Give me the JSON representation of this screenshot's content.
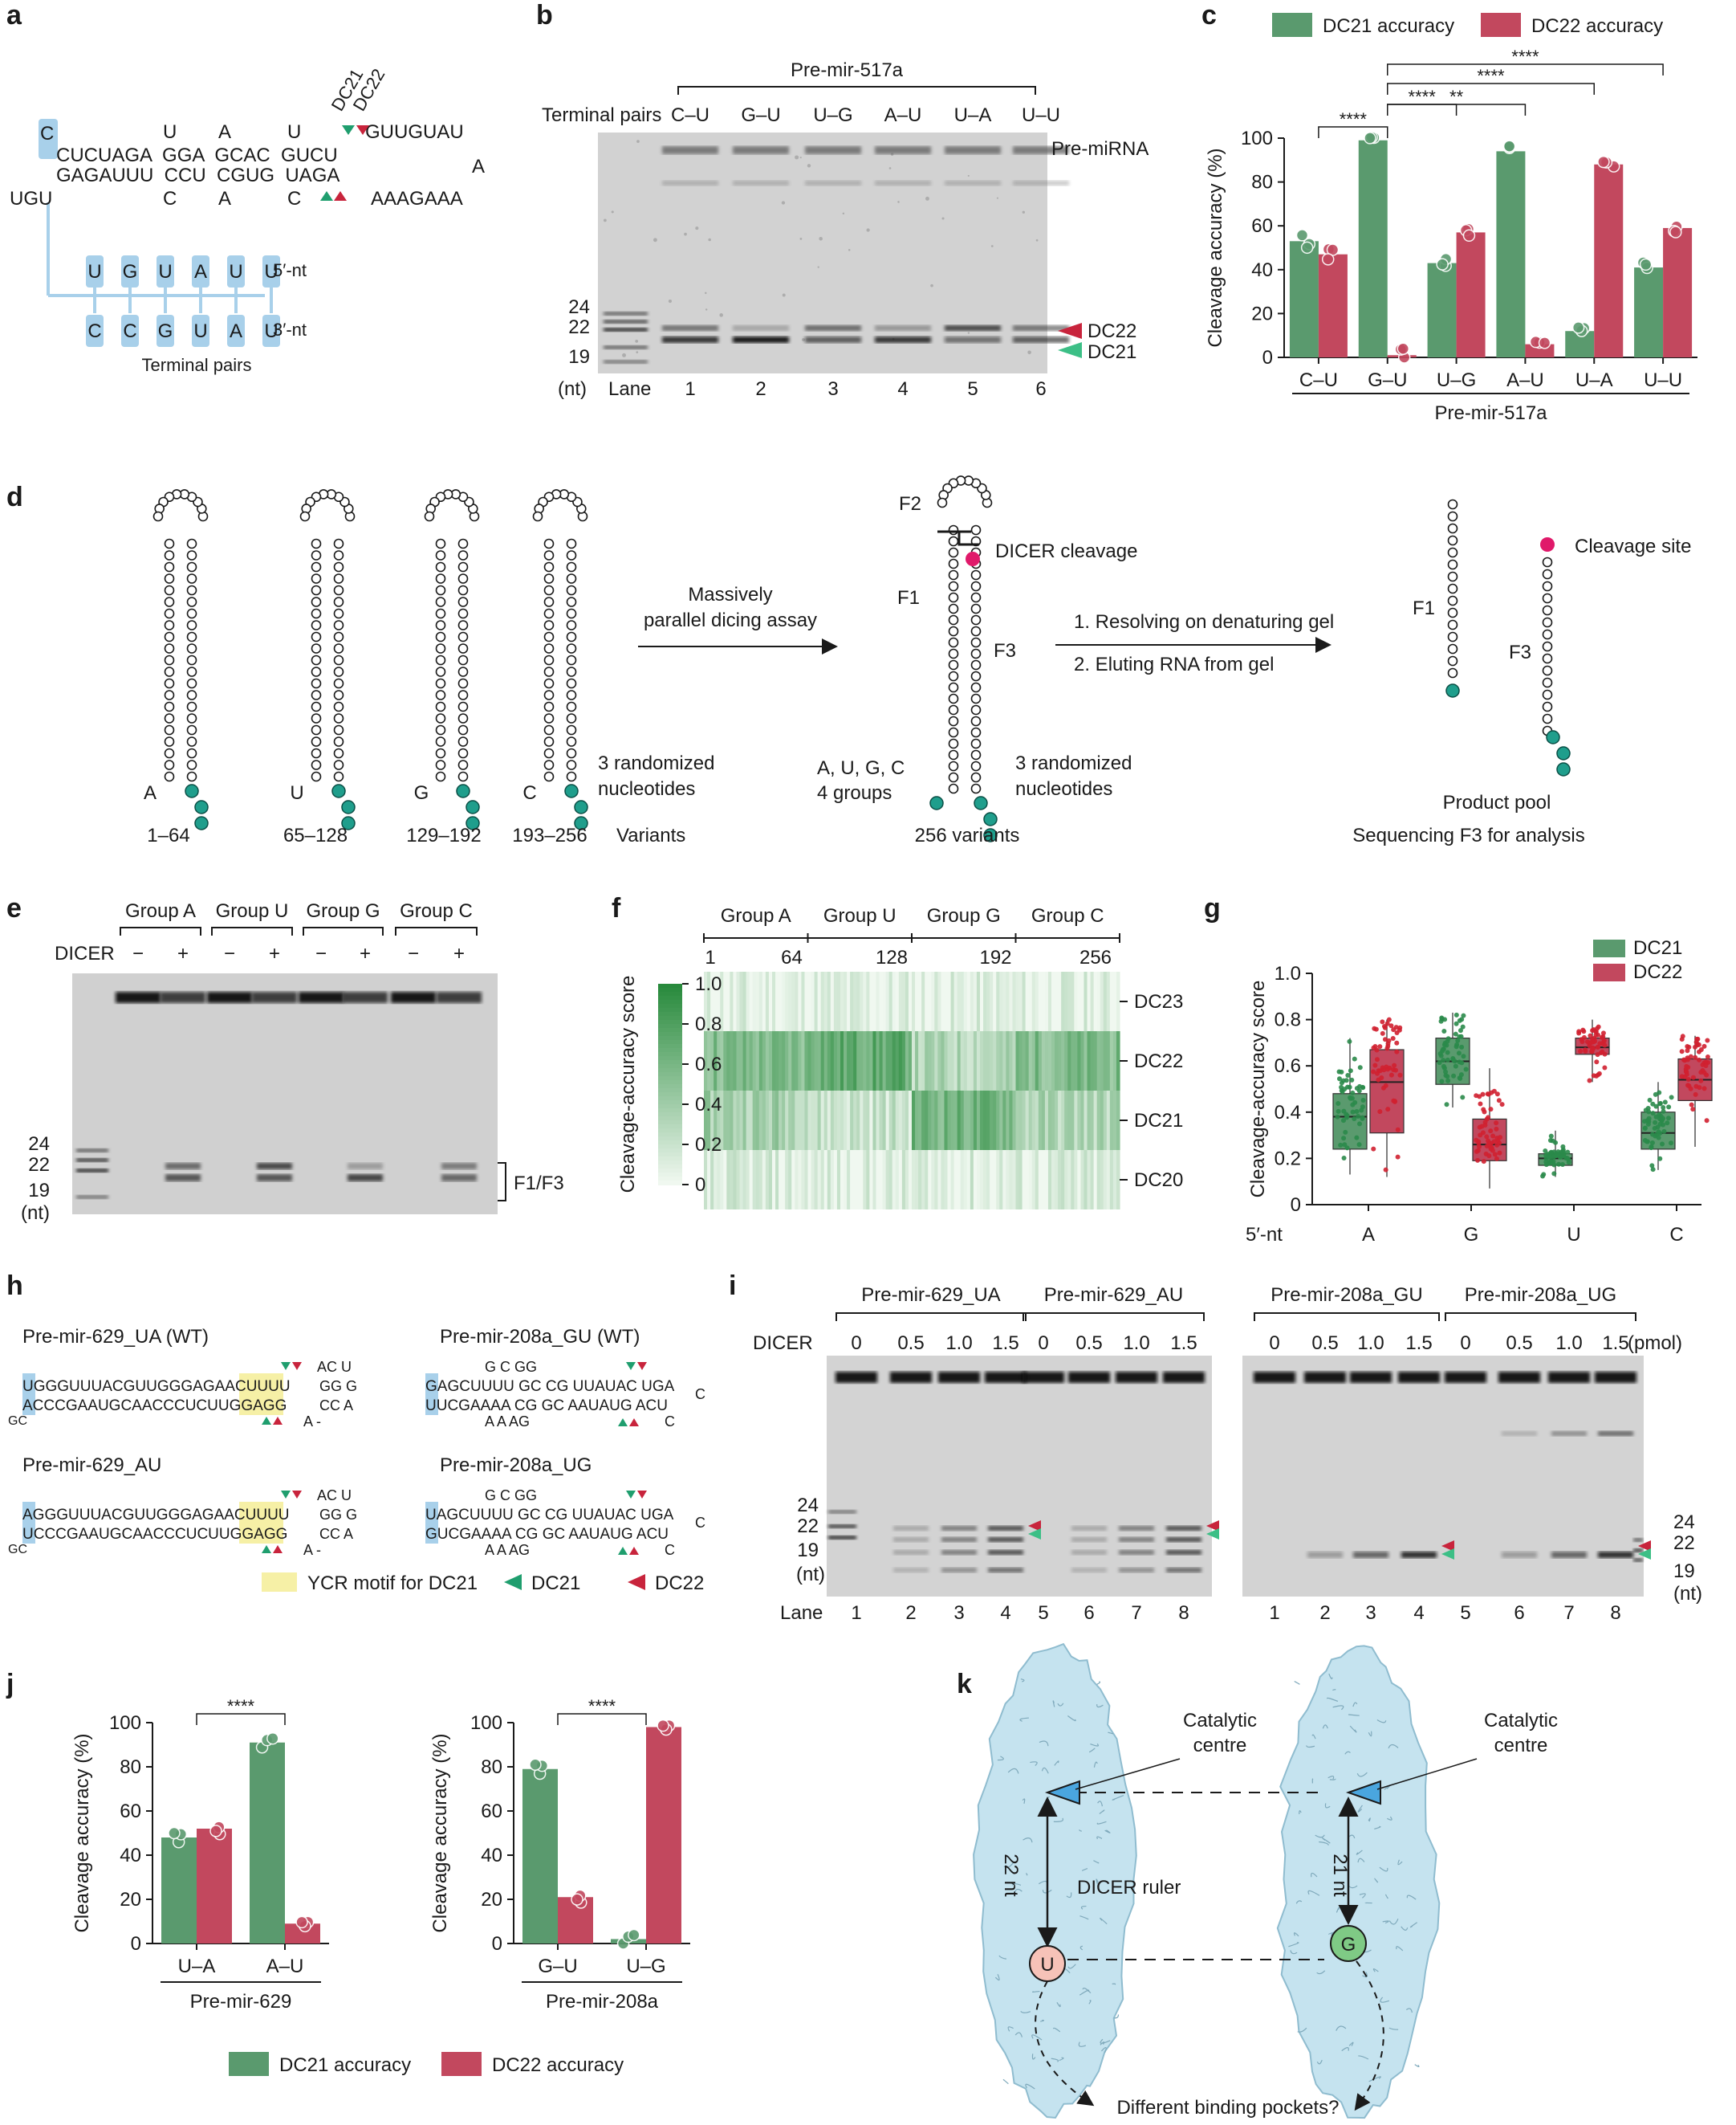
{
  "colors": {
    "dc21": "#5a9a6e",
    "dc22": "#c2485e",
    "hl_blue": "#a8d0ea",
    "hl_yellow": "#f6f0a6",
    "dicer_fill": "#c5e3ef",
    "dicer_stroke": "#8fbccf",
    "nt_teal": "#1f9e8c",
    "cleave_pink": "#e0196a",
    "gel_bg": "#d4d4d4",
    "heat": "#2e8b47"
  },
  "panels": {
    "a": {
      "label": "a",
      "rows": [
        "CUCUAGA  GGA  GCAC  GUCU",
        "GAGAUUU  CCU  CGUG  UAGA"
      ],
      "loops_top": [
        "U",
        "A",
        "U"
      ],
      "loops_bot": [
        "C",
        "A",
        "C"
      ],
      "left_top": "C",
      "left_bot": "UGU",
      "tail_top": "GUUGUAU",
      "apex": "A",
      "tail_bot": "AAAGAAA",
      "top_nt": [
        "U",
        "G",
        "U",
        "A",
        "U",
        "U"
      ],
      "bot_nt": [
        "C",
        "C",
        "G",
        "U",
        "A",
        "U"
      ],
      "five_nt": "5′-nt",
      "three_nt": "3′-nt",
      "caption": "Terminal pairs",
      "dc21": "DC21",
      "dc22": "DC22"
    },
    "b": {
      "label": "b",
      "title": "Pre-mir-517a",
      "row_label": "Terminal pairs",
      "pairs": [
        "C–U",
        "G–U",
        "U–G",
        "A–U",
        "U–A",
        "U–U"
      ],
      "markers": [
        "24",
        "22",
        "19"
      ],
      "nt": "(nt)",
      "lane": "Lane",
      "lanes": [
        "1",
        "2",
        "3",
        "4",
        "5",
        "6"
      ],
      "pre": "Pre-miRNA",
      "dc22": "DC22",
      "dc21": "DC21"
    },
    "c": {
      "label": "c"
    },
    "d": {
      "label": "d",
      "letters": [
        "A",
        "U",
        "G",
        "C"
      ],
      "ranges": [
        "1–64",
        "65–128",
        "129–192",
        "193–256"
      ],
      "variants": "Variants",
      "rand": [
        "3 randomized",
        "nucleotides"
      ],
      "arrow1": [
        "Massively",
        "parallel dicing assay"
      ],
      "f1": "F1",
      "f2": "F2",
      "f3": "F3",
      "cleavage": "DICER cleavage",
      "groups": [
        "A, U, G, C",
        "4 groups"
      ],
      "v256": "256 variants",
      "steps": [
        "1. Resolving on denaturing  gel",
        "2. Eluting RNA from gel"
      ],
      "site": "Cleavage site",
      "pool": "Product pool",
      "seq": "Sequencing F3 for analysis"
    },
    "e": {
      "label": "e",
      "groups": [
        "Group A",
        "Group U",
        "Group G",
        "Group C"
      ],
      "dicer": "DICER",
      "signs": [
        "−",
        "+",
        "−",
        "+",
        "−",
        "+",
        "−",
        "+"
      ],
      "markers": [
        "24",
        "22",
        "19"
      ],
      "nt": "(nt)",
      "product": "F1/F3"
    },
    "f": {
      "label": "f"
    },
    "g": {
      "label": "g"
    },
    "h": {
      "label": "h",
      "c1": "Pre-mir-629_UA (WT)",
      "c2": "Pre-mir-208a_GU (WT)",
      "c3": "Pre-mir-629_AU",
      "c4": "Pre-mir-208a_UG",
      "s629wt": [
        "UGGGUUUACGUUGGGAGAACUUUU",
        "ACCCGAAUGCAACCCUCUUGGAGG"
      ],
      "s629au": [
        "AGGGUUUACGUUGGGAGAACUUUU",
        "UCCCGAAUGCAACCCUCUUGGAGG"
      ],
      "s629loop": [
        "AC U",
        "GG G",
        "CC A",
        "A -"
      ],
      "s208gu": [
        "GAGCUUUU GC CG UUAUAC UGA",
        "UUCGAAAA CG GC AAUAUG ACU"
      ],
      "s208ug": [
        "UAGCUUUU GC CG UUAUAC UGA",
        "GUCGAAAA CG GC AAUAUG ACU"
      ],
      "s208top": "G C GG",
      "s208bot": "A A AG",
      "s208tail": [
        "C",
        "G",
        "A",
        "C",
        "U",
        "C"
      ],
      "gc": "GC",
      "legend_ycr": "YCR motif for DC21",
      "legend_dc21": "DC21",
      "legend_dc22": "DC22"
    },
    "i": {
      "label": "i",
      "dicer": "DICER",
      "pmol": "(pmol)",
      "g1": "Pre-mir-629_UA",
      "g2": "Pre-mir-629_AU",
      "g3": "Pre-mir-208a_GU",
      "g4": "Pre-mir-208a_UG",
      "conc": [
        "0",
        "0.5",
        "1.0",
        "1.5"
      ],
      "lanes": [
        "1",
        "2",
        "3",
        "4",
        "5",
        "6",
        "7",
        "8"
      ],
      "markers": [
        "24",
        "22",
        "19"
      ],
      "nt": "(nt)",
      "lane": "Lane"
    },
    "j": {
      "label": "j",
      "legend": [
        "DC21 accuracy",
        "DC22 accuracy"
      ]
    },
    "k": {
      "label": "k",
      "catalytic": [
        "Catalytic",
        "centre"
      ],
      "ruler": "DICER ruler",
      "l22": "22 nt",
      "l21": "21 nt",
      "u": "U",
      "g": "G",
      "pockets": "Different binding pockets?"
    }
  },
  "chart_data": [
    {
      "panel": "c",
      "type": "bar",
      "categories": [
        "C–U",
        "G–U",
        "U–G",
        "A–U",
        "U–A",
        "U–U"
      ],
      "group_label": "Pre-mir-517a",
      "ylabel": "Cleavage accuracy (%)",
      "ylim": [
        0,
        100
      ],
      "yticks": [
        "0",
        "20",
        "40",
        "60",
        "80",
        "100"
      ],
      "legend": [
        "DC21 accuracy",
        "DC22 accuracy"
      ],
      "series": [
        {
          "name": "DC21 accuracy",
          "values": [
            53,
            99,
            43,
            94,
            12,
            41
          ]
        },
        {
          "name": "DC22 accuracy",
          "values": [
            47,
            1,
            57,
            6,
            88,
            59
          ]
        }
      ],
      "significance": [
        {
          "from": 0,
          "to": 1,
          "text": "****"
        },
        {
          "from": 1,
          "to": 2,
          "text": "****"
        },
        {
          "from": 1,
          "to": 3,
          "text": "**"
        },
        {
          "from": 1,
          "to": 4,
          "text": "****"
        },
        {
          "from": 1,
          "to": 5,
          "text": "****"
        }
      ]
    },
    {
      "panel": "f",
      "type": "heatmap",
      "groups": [
        "Group A",
        "Group U",
        "Group G",
        "Group C"
      ],
      "xticks": [
        "1",
        "64",
        "128",
        "192",
        "256"
      ],
      "rows": [
        "DC23",
        "DC22",
        "DC21",
        "DC20"
      ],
      "colorbar_label": "Cleavage-accuracy score",
      "colorbar_ticks": [
        "0",
        "0.2",
        "0.4",
        "0.6",
        "0.8",
        "1.0"
      ],
      "row_means_by_group": [
        [
          0.05,
          0.05,
          0.05,
          0.05
        ],
        [
          0.55,
          0.7,
          0.3,
          0.55
        ],
        [
          0.38,
          0.2,
          0.62,
          0.32
        ],
        [
          0.08,
          0.06,
          0.08,
          0.08
        ]
      ]
    },
    {
      "panel": "g",
      "type": "box",
      "categories": [
        "A",
        "G",
        "U",
        "C"
      ],
      "xlabel": "5′-nt",
      "ylabel": "Cleavage-accuracy score",
      "ylim": [
        0,
        1.0
      ],
      "yticks": [
        "0",
        "0.2",
        "0.4",
        "0.6",
        "0.8",
        "1.0"
      ],
      "series": [
        {
          "name": "DC21",
          "boxes": [
            [
              0.13,
              0.24,
              0.38,
              0.48,
              0.72
            ],
            [
              0.42,
              0.52,
              0.62,
              0.72,
              0.83
            ],
            [
              0.12,
              0.17,
              0.2,
              0.22,
              0.32
            ],
            [
              0.15,
              0.24,
              0.31,
              0.4,
              0.53
            ]
          ]
        },
        {
          "name": "DC22",
          "boxes": [
            [
              0.12,
              0.31,
              0.53,
              0.67,
              0.8
            ],
            [
              0.07,
              0.19,
              0.26,
              0.37,
              0.59
            ],
            [
              0.53,
              0.65,
              0.68,
              0.72,
              0.8
            ],
            [
              0.25,
              0.45,
              0.54,
              0.63,
              0.73
            ]
          ]
        }
      ]
    },
    {
      "panel": "j1",
      "type": "bar",
      "group_label": "Pre-mir-629",
      "categories": [
        "U–A",
        "A–U"
      ],
      "ylabel": "Cleavage accuracy (%)",
      "ylim": [
        0,
        100
      ],
      "yticks": [
        "0",
        "20",
        "40",
        "60",
        "80",
        "100"
      ],
      "series": [
        {
          "name": "DC21 accuracy",
          "values": [
            48,
            91
          ]
        },
        {
          "name": "DC22 accuracy",
          "values": [
            52,
            9
          ]
        }
      ],
      "significance": [
        {
          "from": 0,
          "to": 1,
          "text": "****"
        }
      ]
    },
    {
      "panel": "j2",
      "type": "bar",
      "group_label": "Pre-mir-208a",
      "categories": [
        "G–U",
        "U–G"
      ],
      "ylabel": "Cleavage accuracy (%)",
      "ylim": [
        0,
        100
      ],
      "yticks": [
        "0",
        "20",
        "40",
        "60",
        "80",
        "100"
      ],
      "series": [
        {
          "name": "DC21 accuracy",
          "values": [
            79,
            2
          ]
        },
        {
          "name": "DC22 accuracy",
          "values": [
            21,
            98
          ]
        }
      ],
      "significance": [
        {
          "from": 0,
          "to": 1,
          "text": "****"
        }
      ]
    }
  ]
}
